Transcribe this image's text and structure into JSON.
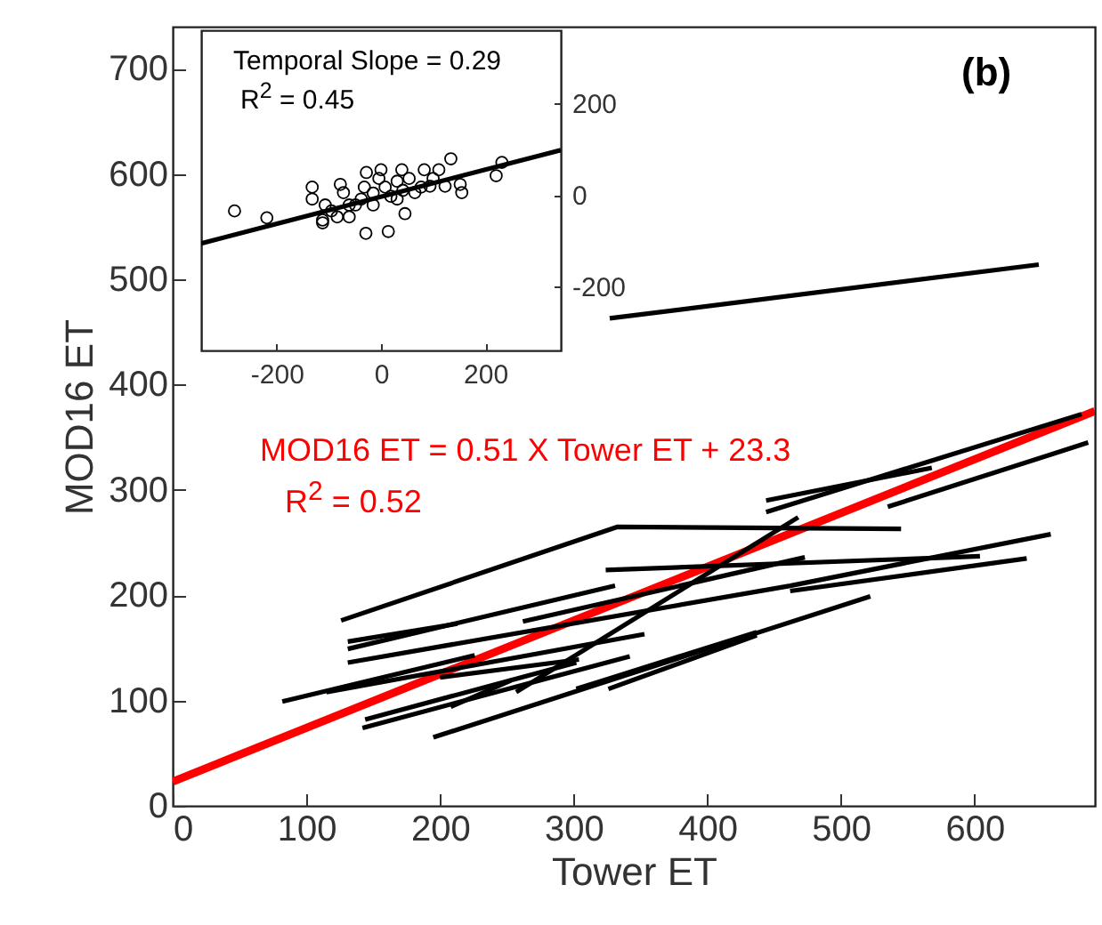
{
  "chart_data": [
    {
      "type": "line",
      "xlabel": "Tower ET",
      "ylabel": "MOD16 ET",
      "xlim": [
        0,
        690
      ],
      "xticks": [
        0,
        100,
        200,
        300,
        400,
        500,
        600
      ],
      "ylim": [
        0,
        740
      ],
      "yticks": [
        0,
        100,
        200,
        300,
        400,
        500,
        600,
        700
      ],
      "grid": false,
      "annotations": [
        "(b)",
        "MOD16 ET = 0.51 X Tower ET + 23.3",
        "R$^{2}$ = 0.52"
      ],
      "series": [
        {
          "color": "#ff0000",
          "x": [
            0,
            690
          ],
          "values": [
            23,
            375
          ]
        },
        {
          "color": "#000000",
          "x": [
            126,
            333,
            545
          ],
          "values": [
            176,
            265,
            263
          ]
        },
        {
          "color": "#000000",
          "x": [
            444,
            568
          ],
          "values": [
            290,
            321
          ]
        },
        {
          "color": "#000000",
          "x": [
            444,
            680
          ],
          "values": [
            279,
            372
          ]
        },
        {
          "color": "#000000",
          "x": [
            535,
            685
          ],
          "values": [
            284,
            345
          ]
        },
        {
          "color": "#000000",
          "x": [
            324,
            604
          ],
          "values": [
            224,
            237
          ]
        },
        {
          "color": "#000000",
          "x": [
            462,
            639
          ],
          "values": [
            204,
            235
          ]
        },
        {
          "color": "#000000",
          "x": [
            257,
            468
          ],
          "values": [
            108,
            274
          ]
        },
        {
          "color": "#000000",
          "x": [
            262,
            473
          ],
          "values": [
            175,
            236
          ]
        },
        {
          "color": "#000000",
          "x": [
            131,
            331
          ],
          "values": [
            149,
            209
          ]
        },
        {
          "color": "#000000",
          "x": [
            131,
            213
          ],
          "values": [
            156,
            173
          ]
        },
        {
          "color": "#000000",
          "x": [
            82,
            226
          ],
          "values": [
            99,
            143
          ]
        },
        {
          "color": "#000000",
          "x": [
            115,
            353
          ],
          "values": [
            108,
            163
          ]
        },
        {
          "color": "#000000",
          "x": [
            131,
            462,
            657
          ],
          "values": [
            136,
            209,
            258
          ]
        },
        {
          "color": "#000000",
          "x": [
            200,
            304
          ],
          "values": [
            122,
            139
          ]
        },
        {
          "color": "#000000",
          "x": [
            142,
            342
          ],
          "values": [
            74,
            142
          ]
        },
        {
          "color": "#000000",
          "x": [
            144,
            302
          ],
          "values": [
            82,
            136
          ]
        },
        {
          "color": "#000000",
          "x": [
            195,
            522
          ],
          "values": [
            65,
            199
          ]
        },
        {
          "color": "#000000",
          "x": [
            302,
            437
          ],
          "values": [
            111,
            165
          ]
        },
        {
          "color": "#000000",
          "x": [
            326,
            437
          ],
          "values": [
            111,
            162
          ]
        },
        {
          "color": "#000000",
          "x": [
            208,
            253
          ],
          "values": [
            94,
            119
          ]
        },
        {
          "color": "#000000",
          "x": [
            327,
            648
          ],
          "values": [
            463,
            514
          ]
        }
      ]
    },
    {
      "type": "scatter",
      "xlim": [
        -345,
        345
      ],
      "xticks": [
        -200,
        0,
        200
      ],
      "ylim": [
        -340,
        360
      ],
      "yticks": [
        -200,
        0,
        200
      ],
      "grid": false,
      "annotations": [
        "Temporal Slope = 0.29",
        "R$^{2}$ = 0.45"
      ],
      "series": [
        {
          "color": "#000000",
          "marker": "circle",
          "x": [
            -281,
            -219,
            -132,
            -132,
            -78,
            -112,
            -95,
            -61,
            -29,
            14,
            -28,
            0,
            40,
            46,
            83,
            111,
            134,
            123,
            152,
            155,
            221,
            232,
            -61,
            -38,
            -15,
            8,
            31,
            54,
            77,
            100,
            -49,
            -15,
            19,
            42,
            65,
            -84,
            -107,
            -72,
            -32,
            -4,
            31,
            94,
            -112
          ],
          "values": [
            -35,
            -50,
            17,
            -9,
            23,
            -61,
            -35,
            -22,
            -84,
            -80,
            49,
            55,
            55,
            -41,
            55,
            55,
            79,
            19,
            23,
            5,
            42,
            71,
            -48,
            -9,
            4,
            17,
            30,
            36,
            17,
            36,
            -22,
            -22,
            -3,
            10,
            5,
            -48,
            -22,
            5,
            17,
            36,
            -9,
            19,
            -55
          ]
        },
        {
          "type": "line",
          "color": "#000000",
          "x": [
            -345,
            345
          ],
          "values": [
            -106,
            98
          ]
        }
      ]
    }
  ]
}
